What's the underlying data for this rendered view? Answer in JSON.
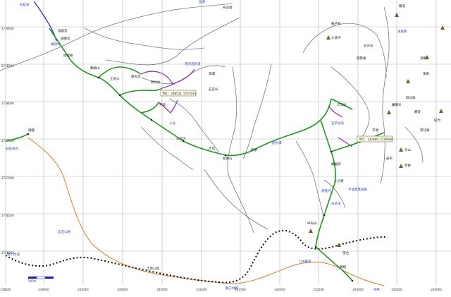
{
  "map": {
    "colors": {
      "grid": "#b5b5b5",
      "trail": "#1e9a1e",
      "route_purple": "#8a2bc8",
      "road_orange": "#e07a2a",
      "road_black_dotted": "#111111",
      "stream_gray": "#777777",
      "river_blue": "#1a1acc",
      "label_blue": "#3344cc",
      "peak": "#7a5a2a"
    },
    "x_axis_ticks": [
      "238500",
      "239000",
      "239500",
      "240000",
      "240500",
      "241000",
      "241500",
      "242000",
      "242500",
      "243000",
      "243500",
      "244000"
    ],
    "y_axis_ticks": [
      "2739000",
      "2738500",
      "2738000",
      "2737500",
      "2737000",
      "2736500",
      "2736000"
    ],
    "coord_boxes": [
      "TM2: 240511 2737633",
      "TM2: 242869 2736940"
    ],
    "place_labels": {
      "l01": "石碇溪",
      "l02": "福盛宮",
      "l03": "福德宮",
      "l04": "柵頂坑",
      "l05": "姑娘廟",
      "l06": "獅頭山",
      "l07": "土地公",
      "l08": "南天宮",
      "l09": "新竹坑",
      "l10": "南天宮步道",
      "l11": "平溪",
      "l12": "十分",
      "l13": "三叉坑",
      "l14": "大坑",
      "l15": "紫東山",
      "l16": "新寮",
      "l17": "虎豹潭",
      "l18": "石空山",
      "l19": "烏塗窟",
      "l20": "長源",
      "l21": "楓子林",
      "l22": "大溪坪",
      "l23": "五分山",
      "l24": "東勢格",
      "l25": "雙溪",
      "l26": "頂寮",
      "l27": "後寮",
      "l28": "四分尾",
      "l29": "靜安",
      "l30": "碇內",
      "l31": "茶仔寮",
      "l32": "烏山",
      "l33": "柴寮",
      "l34": "泰平",
      "l35": "三叉坑",
      "l36": "石笋古道",
      "l37": "蝙蝠洞",
      "l38": "十分寮",
      "l39": "平溪產業道路",
      "l40": "北宜公路",
      "l41": "106縣道",
      "l42": "土地公嶺",
      "l43": "楓子林路",
      "l44": "岩山步道",
      "l45": "中央尖",
      "l46": "基隆河",
      "l47": "烏塗溪",
      "l48": "石碇溪谷",
      "l49": "嶺腳",
      "l50": "望古",
      "l51": "菁桐",
      "l52": "薯榔尖",
      "l53": "平湖",
      "l54": "溪尾寮",
      "l55": "坪林",
      "l56": "灣潭"
    },
    "scale_bar_label": "500m"
  }
}
